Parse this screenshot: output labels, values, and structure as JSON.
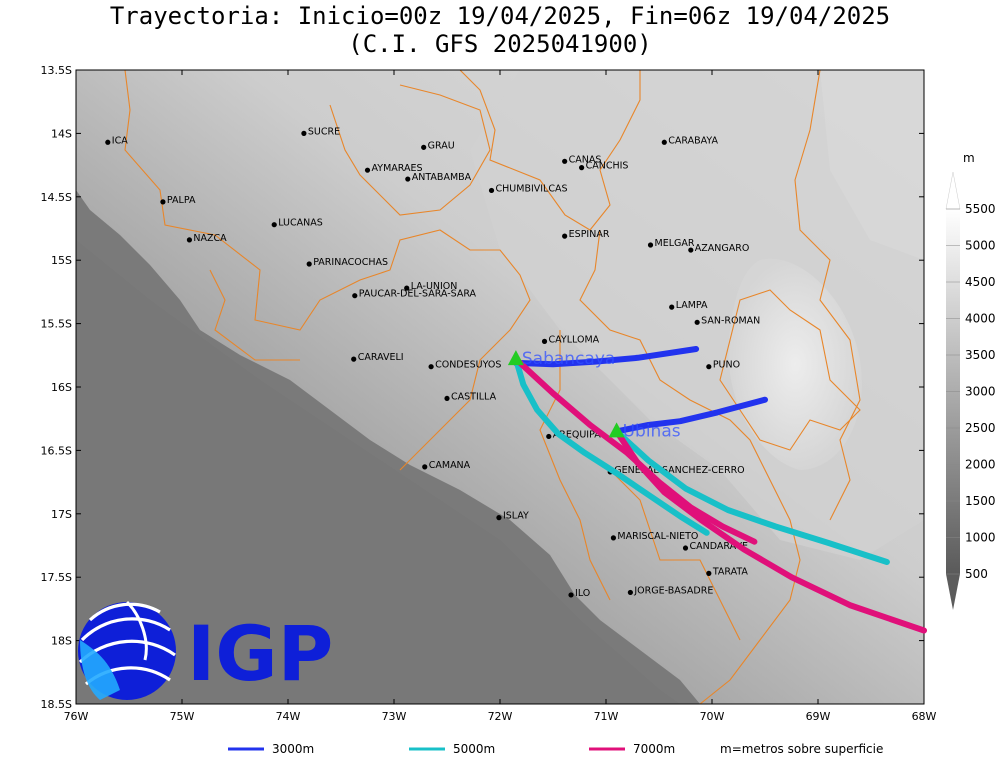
{
  "title_line1": "Trayectoria: Inicio=00z 19/04/2025, Fin=06z 19/04/2025",
  "title_line2": "(C.I. GFS 2025041900)",
  "colors": {
    "c3000": "#2233ee",
    "c5000": "#18c0c8",
    "c7000": "#e0107a",
    "border": "#e8862a",
    "volcano": "#22cc22"
  },
  "axes": {
    "lon_range": [
      -76,
      -68
    ],
    "lat_range": [
      -18.5,
      -13.5
    ],
    "lon_ticks": [
      {
        "v": -76,
        "label": "76W"
      },
      {
        "v": -75,
        "label": "75W"
      },
      {
        "v": -74,
        "label": "74W"
      },
      {
        "v": -73,
        "label": "73W"
      },
      {
        "v": -72,
        "label": "72W"
      },
      {
        "v": -71,
        "label": "71W"
      },
      {
        "v": -70,
        "label": "70W"
      },
      {
        "v": -69,
        "label": "69W"
      },
      {
        "v": -68,
        "label": "68W"
      }
    ],
    "lat_ticks": [
      {
        "v": -13.5,
        "label": "13.5S"
      },
      {
        "v": -14,
        "label": "14S"
      },
      {
        "v": -14.5,
        "label": "14.5S"
      },
      {
        "v": -15,
        "label": "15S"
      },
      {
        "v": -15.5,
        "label": "15.5S"
      },
      {
        "v": -16,
        "label": "16S"
      },
      {
        "v": -16.5,
        "label": "16.5S"
      },
      {
        "v": -17,
        "label": "17S"
      },
      {
        "v": -17.5,
        "label": "17.5S"
      },
      {
        "v": -18,
        "label": "18S"
      },
      {
        "v": -18.5,
        "label": "18.5S"
      }
    ]
  },
  "colorbar": {
    "unit": "m",
    "ticks": [
      "500",
      "1000",
      "1500",
      "2000",
      "2500",
      "3000",
      "3500",
      "4000",
      "4500",
      "5000",
      "5500"
    ]
  },
  "places": [
    {
      "name": "ICA",
      "lon": -75.7,
      "lat": -14.07
    },
    {
      "name": "SUCRE",
      "lon": -73.85,
      "lat": -14.0
    },
    {
      "name": "GRAU",
      "lon": -72.72,
      "lat": -14.11
    },
    {
      "name": "CARABAYA",
      "lon": -70.45,
      "lat": -14.07
    },
    {
      "name": "CANAS",
      "lon": -71.39,
      "lat": -14.22
    },
    {
      "name": "CANCHIS",
      "lon": -71.23,
      "lat": -14.27
    },
    {
      "name": "AYMARAES",
      "lon": -73.25,
      "lat": -14.29
    },
    {
      "name": "ANTABAMBA",
      "lon": -72.87,
      "lat": -14.36
    },
    {
      "name": "CHUMBIVILCAS",
      "lon": -72.08,
      "lat": -14.45
    },
    {
      "name": "PALPA",
      "lon": -75.18,
      "lat": -14.54
    },
    {
      "name": "LUCANAS",
      "lon": -74.13,
      "lat": -14.72
    },
    {
      "name": "NAZCA",
      "lon": -74.93,
      "lat": -14.84
    },
    {
      "name": "ESPINAR",
      "lon": -71.39,
      "lat": -14.81
    },
    {
      "name": "MELGAR",
      "lon": -70.58,
      "lat": -14.88
    },
    {
      "name": "AZANGARO",
      "lon": -70.2,
      "lat": -14.92
    },
    {
      "name": "PARINACOCHAS",
      "lon": -73.8,
      "lat": -15.03
    },
    {
      "name": "LA-UNION",
      "lon": -72.88,
      "lat": -15.22
    },
    {
      "name": "PAUCAR-DEL-SARA-SARA",
      "lon": -73.37,
      "lat": -15.28
    },
    {
      "name": "LAMPA",
      "lon": -70.38,
      "lat": -15.37
    },
    {
      "name": "SAN-ROMAN",
      "lon": -70.14,
      "lat": -15.49
    },
    {
      "name": "CAYLLOMA",
      "lon": -71.58,
      "lat": -15.64
    },
    {
      "name": "CARAVELI",
      "lon": -73.38,
      "lat": -15.78
    },
    {
      "name": "PUNO",
      "lon": -70.03,
      "lat": -15.84
    },
    {
      "name": "CONDESUYOS",
      "lon": -72.65,
      "lat": -15.84
    },
    {
      "name": "CASTILLA",
      "lon": -72.5,
      "lat": -16.09
    },
    {
      "name": "AREQUIPA",
      "lon": -71.54,
      "lat": -16.39
    },
    {
      "name": "CAMANA",
      "lon": -72.71,
      "lat": -16.63
    },
    {
      "name": "GENERAL-SANCHEZ-CERRO",
      "lon": -70.96,
      "lat": -16.67
    },
    {
      "name": "ISLAY",
      "lon": -72.01,
      "lat": -17.03
    },
    {
      "name": "MARISCAL-NIETO",
      "lon": -70.93,
      "lat": -17.19
    },
    {
      "name": "CANDARAVE",
      "lon": -70.25,
      "lat": -17.27
    },
    {
      "name": "TARATA",
      "lon": -70.03,
      "lat": -17.47
    },
    {
      "name": "ILO",
      "lon": -71.33,
      "lat": -17.64
    },
    {
      "name": "JORGE-BASADRE",
      "lon": -70.77,
      "lat": -17.62
    }
  ],
  "volcanoes": [
    {
      "name": "Sabancaya",
      "lon": -71.85,
      "lat": -15.78
    },
    {
      "name": "Ubinas",
      "lon": -70.9,
      "lat": -16.35
    }
  ],
  "trajectories": [
    {
      "level": "3000m",
      "color": "#2233ee",
      "points": [
        [
          -71.85,
          -15.81
        ],
        [
          -71.5,
          -15.82
        ],
        [
          -71.1,
          -15.8
        ],
        [
          -70.7,
          -15.77
        ],
        [
          -70.15,
          -15.7
        ]
      ]
    },
    {
      "level": "5000m",
      "color": "#18c0c8",
      "points": [
        [
          -71.85,
          -15.78
        ],
        [
          -71.78,
          -15.98
        ],
        [
          -71.65,
          -16.18
        ],
        [
          -71.45,
          -16.37
        ],
        [
          -71.2,
          -16.52
        ],
        [
          -70.9,
          -16.68
        ],
        [
          -70.6,
          -16.85
        ],
        [
          -70.3,
          -17.02
        ],
        [
          -70.05,
          -17.15
        ]
      ]
    },
    {
      "level": "7000m",
      "color": "#e0107a",
      "points": [
        [
          -71.85,
          -15.78
        ],
        [
          -71.5,
          -16.05
        ],
        [
          -71.15,
          -16.3
        ],
        [
          -70.8,
          -16.52
        ],
        [
          -70.5,
          -16.75
        ],
        [
          -70.2,
          -16.95
        ],
        [
          -69.9,
          -17.1
        ],
        [
          -69.6,
          -17.22
        ]
      ]
    },
    {
      "level": "3000m",
      "color": "#2233ee",
      "points": [
        [
          -70.9,
          -16.35
        ],
        [
          -70.6,
          -16.3
        ],
        [
          -70.3,
          -16.27
        ],
        [
          -69.95,
          -16.2
        ],
        [
          -69.5,
          -16.1
        ]
      ]
    },
    {
      "level": "5000m",
      "color": "#18c0c8",
      "points": [
        [
          -70.9,
          -16.35
        ],
        [
          -70.6,
          -16.58
        ],
        [
          -70.25,
          -16.8
        ],
        [
          -69.85,
          -16.97
        ],
        [
          -69.4,
          -17.1
        ],
        [
          -68.9,
          -17.23
        ],
        [
          -68.35,
          -17.38
        ]
      ]
    },
    {
      "level": "7000m",
      "color": "#e0107a",
      "points": [
        [
          -70.9,
          -16.35
        ],
        [
          -70.7,
          -16.6
        ],
        [
          -70.45,
          -16.83
        ],
        [
          -70.1,
          -17.05
        ],
        [
          -69.7,
          -17.28
        ],
        [
          -69.25,
          -17.5
        ],
        [
          -68.7,
          -17.72
        ],
        [
          -68.0,
          -17.92
        ]
      ]
    }
  ],
  "legend": {
    "items": [
      {
        "label": "3000m",
        "color": "#2233ee"
      },
      {
        "label": "5000m",
        "color": "#18c0c8"
      },
      {
        "label": "7000m",
        "color": "#e0107a"
      }
    ],
    "note": "m=metros sobre superficie"
  },
  "logo": {
    "text": "IGP"
  }
}
